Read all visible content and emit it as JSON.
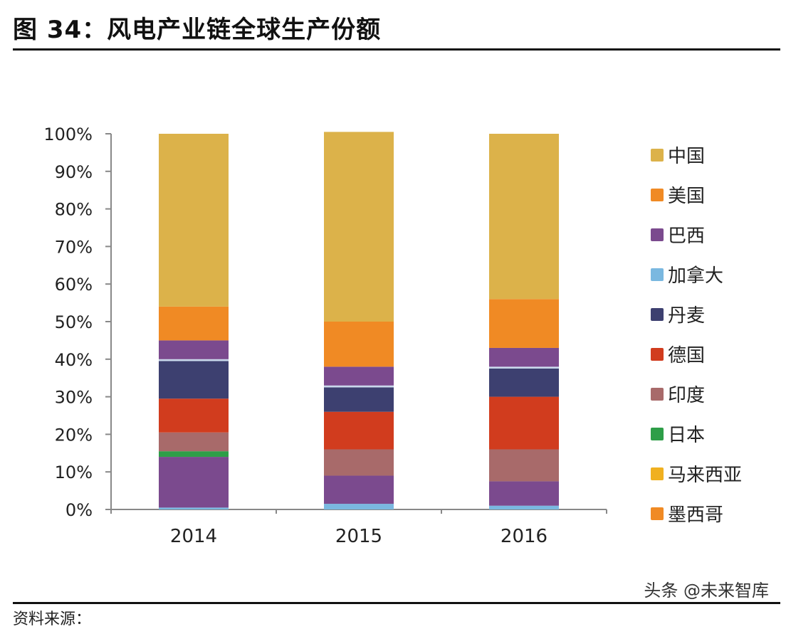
{
  "title": "图 34：风电产业链全球生产份额",
  "watermark": "头条 @未来智库",
  "source": "资料来源：",
  "chart_data": {
    "type": "bar",
    "stacked": true,
    "categories": [
      "2014",
      "2015",
      "2016"
    ],
    "y_ticks": [
      "0%",
      "10%",
      "20%",
      "30%",
      "40%",
      "50%",
      "60%",
      "70%",
      "80%",
      "90%",
      "100%"
    ],
    "ylim": [
      0,
      100
    ],
    "legend_position": "right",
    "series": [
      {
        "name": "墨西哥",
        "color": "#f08a24",
        "values": [
          0,
          0,
          0
        ]
      },
      {
        "name": "马来西亚",
        "color": "#f0b020",
        "values": [
          0,
          0,
          0
        ]
      },
      {
        "name": "加拿大",
        "color": "#7ab8e0",
        "values": [
          0.5,
          1.5,
          1.0
        ]
      },
      {
        "name": "巴西",
        "color": "#7b4a8e",
        "values": [
          13.5,
          7.5,
          6.5
        ]
      },
      {
        "name": "日本",
        "color": "#2e9e48",
        "values": [
          1.5,
          0,
          0
        ]
      },
      {
        "name": "印度",
        "color": "#a86a6a",
        "values": [
          5,
          7,
          8.5
        ]
      },
      {
        "name": "德国",
        "color": "#d13c1e",
        "values": [
          9,
          10,
          14
        ]
      },
      {
        "name": "加拿大",
        "color": "#7ab8e0",
        "values": [
          0,
          0,
          0
        ]
      },
      {
        "name": "丹麦",
        "color": "#3d4070",
        "values": [
          10,
          6.5,
          7.5
        ]
      },
      {
        "name": "加拿大",
        "color": "#c8d8ec",
        "values": [
          0.5,
          0.5,
          0.5
        ]
      },
      {
        "name": "巴西",
        "color": "#7b4a8e",
        "values": [
          5,
          5,
          5
        ]
      },
      {
        "name": "美国",
        "color": "#f08a24",
        "values": [
          9,
          12,
          13
        ]
      },
      {
        "name": "中国",
        "color": "#dcb24a",
        "values": [
          46,
          50.5,
          44
        ]
      }
    ],
    "legend": [
      {
        "name": "中国",
        "color": "#dcb24a"
      },
      {
        "name": "美国",
        "color": "#f08a24"
      },
      {
        "name": "巴西",
        "color": "#7b4a8e"
      },
      {
        "name": "加拿大",
        "color": "#7ab8e0"
      },
      {
        "name": "丹麦",
        "color": "#3d4070"
      },
      {
        "name": "德国",
        "color": "#d13c1e"
      },
      {
        "name": "印度",
        "color": "#a86a6a"
      },
      {
        "name": "日本",
        "color": "#2e9e48"
      },
      {
        "name": "马来西亚",
        "color": "#f0b020"
      },
      {
        "name": "墨西哥",
        "color": "#f08a24"
      }
    ]
  }
}
